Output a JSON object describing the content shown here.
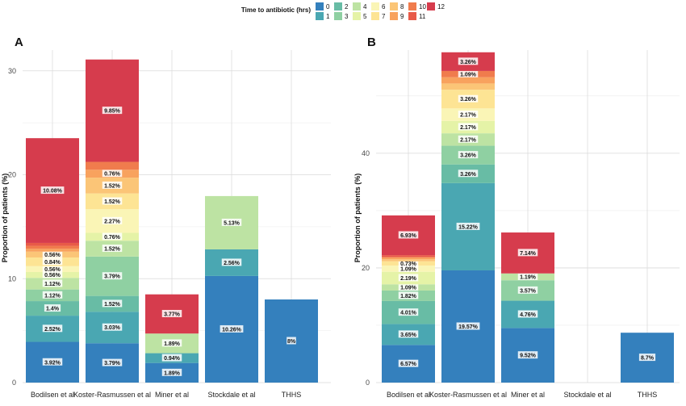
{
  "legend": {
    "title": "Time to antibiotic (hrs)",
    "keys": [
      "0",
      "1",
      "2",
      "3",
      "4",
      "5",
      "6",
      "7",
      "8",
      "9",
      "10",
      "11",
      "12"
    ],
    "colors": [
      "#3480bd",
      "#4aa7b2",
      "#68bca5",
      "#8fd0a2",
      "#bde3a3",
      "#e5f3a7",
      "#faf5b6",
      "#fde494",
      "#fbc577",
      "#f8a25e",
      "#f07c4d",
      "#e85a48",
      "#d63c4d"
    ]
  },
  "panels": [
    {
      "label": "A",
      "ylabel": "Proportion of patients (%)"
    },
    {
      "label": "B",
      "ylabel": "Proportion of patients (%)"
    }
  ],
  "chart_data": [
    {
      "type": "bar",
      "stacked": true,
      "panel": "A",
      "ylabel": "Proportion of patients (%)",
      "ylim": [
        0,
        32
      ],
      "yticks": [
        0,
        10,
        20,
        30
      ],
      "grid": true,
      "categories": [
        "Bodilsen et al",
        "Koster-Rasmussen et al",
        "Miner et al",
        "Stockdale et al",
        "THHS"
      ],
      "stacks": [
        [
          {
            "bin": 0,
            "value": 3.92,
            "label": "3.92%"
          },
          {
            "bin": 1,
            "value": 2.52,
            "label": "2.52%"
          },
          {
            "bin": 2,
            "value": 1.4,
            "label": "1.4%"
          },
          {
            "bin": 3,
            "value": 1.12,
            "label": "1.12%"
          },
          {
            "bin": 4,
            "value": 1.12,
            "label": "1.12%"
          },
          {
            "bin": 5,
            "value": 0.56,
            "label": "0.56%"
          },
          {
            "bin": 6,
            "value": 0.56,
            "label": "0.56%"
          },
          {
            "bin": 7,
            "value": 0.84,
            "label": "0.84%"
          },
          {
            "bin": 8,
            "value": 0.56,
            "label": "0.56%"
          },
          {
            "bin": 9,
            "value": 0.28,
            "label": ""
          },
          {
            "bin": 10,
            "value": 0.28,
            "label": ""
          },
          {
            "bin": 11,
            "value": 0.28,
            "label": ""
          },
          {
            "bin": 12,
            "value": 10.08,
            "label": "10.08%"
          }
        ],
        [
          {
            "bin": 0,
            "value": 3.79,
            "label": "3.79%"
          },
          {
            "bin": 1,
            "value": 3.03,
            "label": "3.03%"
          },
          {
            "bin": 2,
            "value": 1.52,
            "label": "1.52%"
          },
          {
            "bin": 3,
            "value": 3.79,
            "label": "3.79%"
          },
          {
            "bin": 4,
            "value": 1.52,
            "label": "1.52%"
          },
          {
            "bin": 5,
            "value": 0.76,
            "label": "0.76%"
          },
          {
            "bin": 6,
            "value": 2.27,
            "label": "2.27%"
          },
          {
            "bin": 7,
            "value": 1.52,
            "label": "1.52%"
          },
          {
            "bin": 8,
            "value": 1.52,
            "label": "1.52%"
          },
          {
            "bin": 9,
            "value": 0.76,
            "label": "0.76%"
          },
          {
            "bin": 10,
            "value": 0.76,
            "label": ""
          },
          {
            "bin": 12,
            "value": 9.85,
            "label": "9.85%"
          }
        ],
        [
          {
            "bin": 0,
            "value": 1.89,
            "label": "1.89%"
          },
          {
            "bin": 1,
            "value": 0.94,
            "label": "0.94%"
          },
          {
            "bin": 4,
            "value": 1.89,
            "label": "1.89%"
          },
          {
            "bin": 12,
            "value": 3.77,
            "label": "3.77%"
          }
        ],
        [
          {
            "bin": 0,
            "value": 10.26,
            "label": "10.26%"
          },
          {
            "bin": 1,
            "value": 2.56,
            "label": "2.56%"
          },
          {
            "bin": 4,
            "value": 5.13,
            "label": "5.13%"
          }
        ],
        [
          {
            "bin": 0,
            "value": 8,
            "label": "8%"
          }
        ]
      ]
    },
    {
      "type": "bar",
      "stacked": true,
      "panel": "B",
      "ylabel": "Proportion of patients (%)",
      "ylim": [
        0,
        58
      ],
      "yticks": [
        0,
        20,
        40
      ],
      "grid": true,
      "categories": [
        "Bodilsen et al",
        "Koster-Rasmussen et al",
        "Miner et al",
        "Stockdale et al",
        "THHS"
      ],
      "stacks": [
        [
          {
            "bin": 0,
            "value": 6.57,
            "label": "6.57%"
          },
          {
            "bin": 1,
            "value": 3.65,
            "label": "3.65%"
          },
          {
            "bin": 2,
            "value": 4.01,
            "label": "4.01%"
          },
          {
            "bin": 3,
            "value": 1.82,
            "label": "1.82%"
          },
          {
            "bin": 4,
            "value": 1.09,
            "label": "1.09%"
          },
          {
            "bin": 5,
            "value": 2.19,
            "label": "2.19%"
          },
          {
            "bin": 6,
            "value": 1.09,
            "label": "1.09%"
          },
          {
            "bin": 7,
            "value": 0.73,
            "label": "0.73%"
          },
          {
            "bin": 8,
            "value": 0.36,
            "label": ""
          },
          {
            "bin": 9,
            "value": 0.36,
            "label": ""
          },
          {
            "bin": 11,
            "value": 0.36,
            "label": ""
          },
          {
            "bin": 12,
            "value": 6.93,
            "label": "6.93%"
          }
        ],
        [
          {
            "bin": 0,
            "value": 19.57,
            "label": "19.57%"
          },
          {
            "bin": 1,
            "value": 15.22,
            "label": "15.22%"
          },
          {
            "bin": 2,
            "value": 3.26,
            "label": "3.26%"
          },
          {
            "bin": 3,
            "value": 3.26,
            "label": "3.26%"
          },
          {
            "bin": 4,
            "value": 2.17,
            "label": "2.17%"
          },
          {
            "bin": 5,
            "value": 2.17,
            "label": "2.17%"
          },
          {
            "bin": 6,
            "value": 2.17,
            "label": "2.17%"
          },
          {
            "bin": 7,
            "value": 3.26,
            "label": "3.26%"
          },
          {
            "bin": 8,
            "value": 1.09,
            "label": ""
          },
          {
            "bin": 9,
            "value": 1.09,
            "label": ""
          },
          {
            "bin": 10,
            "value": 1.09,
            "label": "1.09%"
          },
          {
            "bin": 12,
            "value": 3.26,
            "label": "3.26%"
          }
        ],
        [
          {
            "bin": 0,
            "value": 9.52,
            "label": "9.52%"
          },
          {
            "bin": 1,
            "value": 4.76,
            "label": "4.76%"
          },
          {
            "bin": 3,
            "value": 3.57,
            "label": "3.57%"
          },
          {
            "bin": 4,
            "value": 1.19,
            "label": "1.19%"
          },
          {
            "bin": 12,
            "value": 7.14,
            "label": "7.14%"
          }
        ],
        [],
        [
          {
            "bin": 0,
            "value": 8.7,
            "label": "8.7%"
          }
        ]
      ]
    }
  ]
}
